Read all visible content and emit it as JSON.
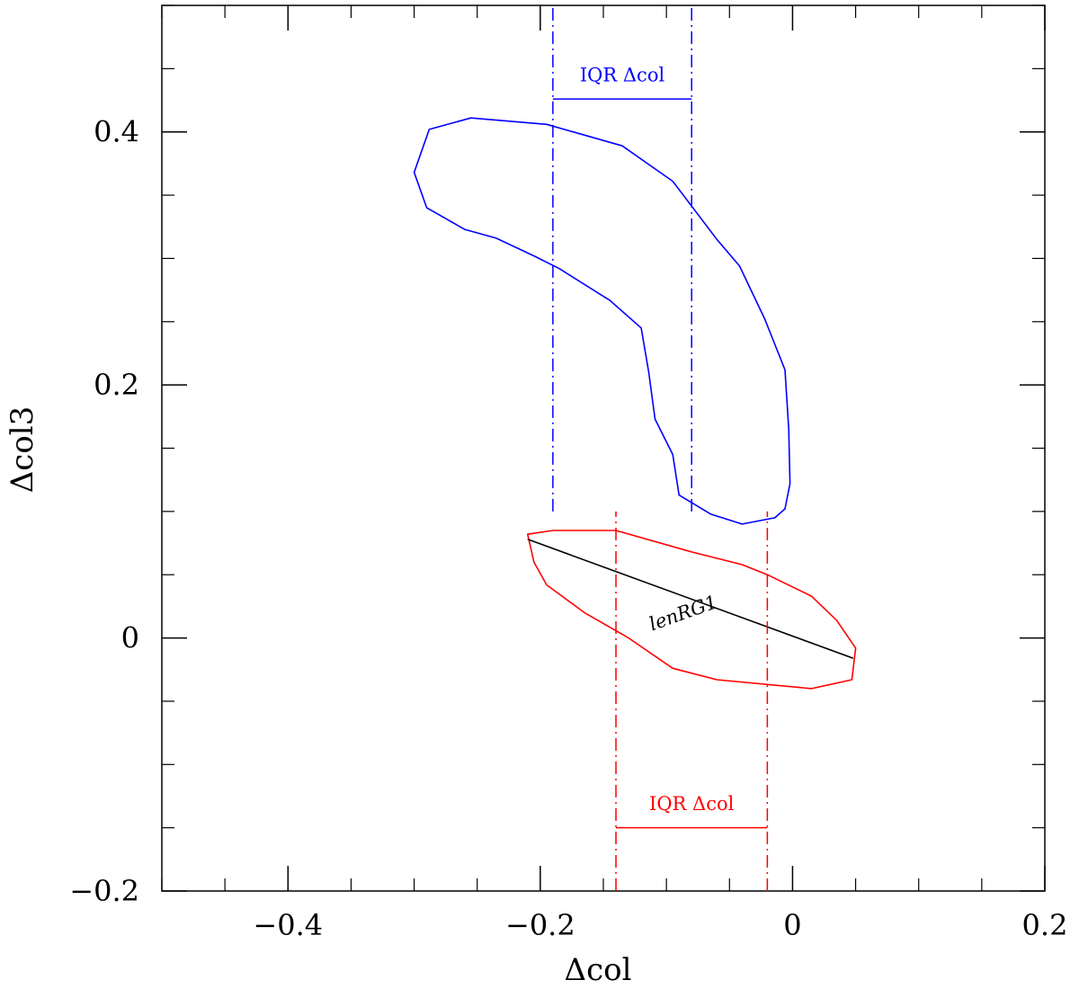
{
  "chart_data": {
    "type": "line",
    "title": "",
    "xlabel": "Δcol",
    "ylabel": "Δcol3",
    "xlim": [
      -0.5,
      0.2
    ],
    "ylim": [
      -0.2,
      0.5
    ],
    "x_ticks": [
      {
        "value": -0.4,
        "label": "−0.4"
      },
      {
        "value": -0.2,
        "label": "−0.2"
      },
      {
        "value": 0,
        "label": "0"
      },
      {
        "value": 0.2,
        "label": "0.2"
      }
    ],
    "y_ticks": [
      {
        "value": -0.2,
        "label": "−0.2"
      },
      {
        "value": 0,
        "label": "0"
      },
      {
        "value": 0.2,
        "label": "0.2"
      },
      {
        "value": 0.4,
        "label": "0.4"
      }
    ],
    "x_minor_step": 0.05,
    "y_minor_step": 0.05,
    "grid": false,
    "series": [
      {
        "color": "#0000ff",
        "closed": true,
        "points": [
          [
            -0.255,
            0.411
          ],
          [
            -0.195,
            0.406
          ],
          [
            -0.135,
            0.389
          ],
          [
            -0.095,
            0.361
          ],
          [
            -0.06,
            0.315
          ],
          [
            -0.042,
            0.294
          ],
          [
            -0.022,
            0.252
          ],
          [
            -0.006,
            0.212
          ],
          [
            -0.003,
            0.165
          ],
          [
            -0.002,
            0.122
          ],
          [
            -0.006,
            0.102
          ],
          [
            -0.014,
            0.095
          ],
          [
            -0.04,
            0.09
          ],
          [
            -0.065,
            0.098
          ],
          [
            -0.09,
            0.113
          ],
          [
            -0.095,
            0.145
          ],
          [
            -0.109,
            0.173
          ],
          [
            -0.114,
            0.21
          ],
          [
            -0.12,
            0.245
          ],
          [
            -0.145,
            0.267
          ],
          [
            -0.185,
            0.292
          ],
          [
            -0.205,
            0.302
          ],
          [
            -0.235,
            0.316
          ],
          [
            -0.26,
            0.323
          ],
          [
            -0.29,
            0.34
          ],
          [
            -0.3,
            0.368
          ],
          [
            -0.288,
            0.402
          ]
        ]
      },
      {
        "color": "#ff0000",
        "closed": true,
        "points": [
          [
            -0.21,
            0.082
          ],
          [
            -0.19,
            0.085
          ],
          [
            -0.14,
            0.085
          ],
          [
            -0.08,
            0.068
          ],
          [
            -0.04,
            0.058
          ],
          [
            -0.02,
            0.05
          ],
          [
            0.015,
            0.033
          ],
          [
            0.035,
            0.014
          ],
          [
            0.05,
            -0.008
          ],
          [
            0.047,
            -0.033
          ],
          [
            0.015,
            -0.04
          ],
          [
            -0.06,
            -0.033
          ],
          [
            -0.095,
            -0.024
          ],
          [
            -0.13,
            0.0
          ],
          [
            -0.165,
            0.02
          ],
          [
            -0.195,
            0.042
          ],
          [
            -0.205,
            0.06
          ],
          [
            -0.21,
            0.082
          ]
        ]
      },
      {
        "color": "#000000",
        "closed": false,
        "points": [
          [
            -0.21,
            0.078
          ],
          [
            0.048,
            -0.016
          ]
        ]
      }
    ],
    "annotations": [
      {
        "text": "IQR Δcol",
        "color": "#0000ff",
        "x1": -0.19,
        "x2": -0.08,
        "y_bar": 0.426,
        "y_text": 0.44,
        "vline_ymin": 0.1,
        "vline_ymax": 0.5
      },
      {
        "text": "IQR Δcol",
        "color": "#ff0000",
        "x1": -0.14,
        "x2": -0.02,
        "y_bar": -0.15,
        "y_text": -0.136,
        "vline_ymin": -0.2,
        "vline_ymax": 0.1
      },
      {
        "text": "lenRG1",
        "color": "#000000",
        "x": -0.085,
        "y": 0.015,
        "rotation": -19.5
      }
    ]
  }
}
